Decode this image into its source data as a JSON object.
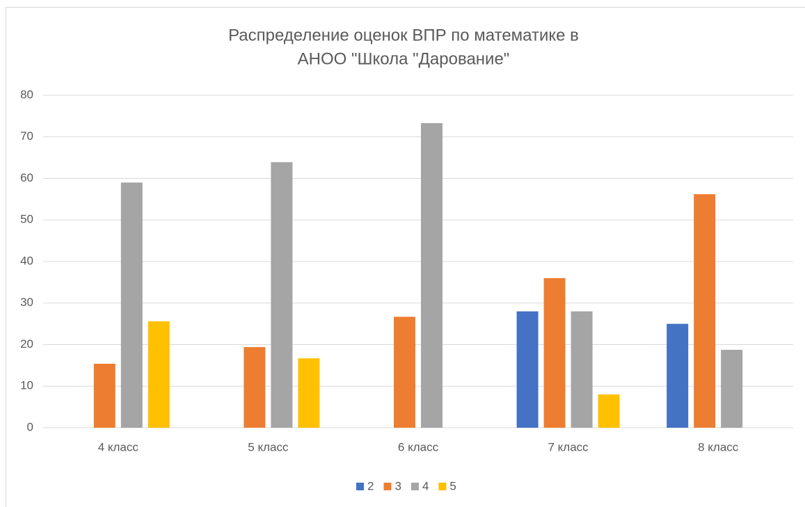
{
  "chart_data": {
    "type": "bar",
    "title": [
      "Распределение оценок ВПР по математике в",
      "АНОО \"Школа \"Дарование\""
    ],
    "categories": [
      "4 класс",
      "5 класс",
      "6 класс",
      "7 класс",
      "8 класс"
    ],
    "series": [
      {
        "name": "2",
        "color": "#4472c4",
        "values": [
          0,
          0,
          0,
          28,
          25
        ]
      },
      {
        "name": "3",
        "color": "#ed7d31",
        "values": [
          15.4,
          19.4,
          26.7,
          36,
          56.2
        ]
      },
      {
        "name": "4",
        "color": "#a5a5a5",
        "values": [
          59,
          63.9,
          73.3,
          28,
          18.75
        ]
      },
      {
        "name": "5",
        "color": "#ffc000",
        "values": [
          25.6,
          16.7,
          0,
          8,
          0
        ]
      }
    ],
    "ylim": [
      0,
      80
    ],
    "yticks": [
      0,
      10,
      20,
      30,
      40,
      50,
      60,
      70,
      80
    ],
    "grid": true,
    "legend": "bottom"
  }
}
